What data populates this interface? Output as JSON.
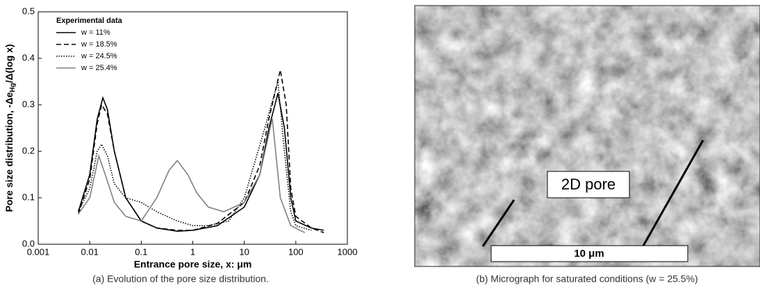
{
  "chart_data": {
    "type": "line",
    "xlabel": "Entrance pore size, x: μm",
    "ylabel": "Pore size distribution, -Δe",
    "ylabel_sub": "Hg",
    "ylabel_end": "/Δ(log x)",
    "legend_title": "Experimental data",
    "legend": "upper left",
    "xscale": "log",
    "xlim": [
      0.001,
      1000
    ],
    "xticks": [
      0.001,
      0.01,
      0.1,
      1,
      10,
      100,
      1000
    ],
    "ylim": [
      0,
      0.5
    ],
    "yticks": [
      {
        "value": 0,
        "label": "0.0"
      },
      0.1,
      0.2,
      0.3,
      0.4,
      0.5
    ],
    "series": [
      {
        "name": "w = 11%",
        "color": "#000000",
        "dash": "solid",
        "x": [
          0.006,
          0.01,
          0.014,
          0.018,
          0.022,
          0.03,
          0.05,
          0.1,
          0.2,
          0.5,
          1,
          3,
          10,
          20,
          30,
          45,
          60,
          80,
          100,
          200,
          350
        ],
        "values": [
          0.07,
          0.15,
          0.27,
          0.315,
          0.29,
          0.2,
          0.1,
          0.05,
          0.035,
          0.028,
          0.03,
          0.04,
          0.08,
          0.15,
          0.25,
          0.325,
          0.25,
          0.1,
          0.05,
          0.035,
          0.03
        ]
      },
      {
        "name": "w = 18.5%",
        "color": "#000000",
        "dash": "dashed",
        "x": [
          0.006,
          0.01,
          0.014,
          0.017,
          0.022,
          0.03,
          0.05,
          0.1,
          0.2,
          0.5,
          1,
          3,
          10,
          20,
          30,
          50,
          65,
          80,
          100,
          200,
          350
        ],
        "values": [
          0.065,
          0.14,
          0.26,
          0.3,
          0.28,
          0.2,
          0.1,
          0.05,
          0.035,
          0.03,
          0.03,
          0.045,
          0.09,
          0.17,
          0.27,
          0.375,
          0.3,
          0.12,
          0.06,
          0.035,
          0.025
        ]
      },
      {
        "name": "w = 24.5%",
        "color": "#000000",
        "dash": "dotted",
        "x": [
          0.006,
          0.01,
          0.014,
          0.017,
          0.022,
          0.03,
          0.05,
          0.1,
          0.2,
          0.5,
          1,
          2,
          5,
          10,
          25,
          45,
          60,
          80,
          100,
          200
        ],
        "values": [
          0.07,
          0.12,
          0.2,
          0.215,
          0.19,
          0.13,
          0.1,
          0.09,
          0.07,
          0.05,
          0.04,
          0.04,
          0.05,
          0.1,
          0.25,
          0.35,
          0.2,
          0.07,
          0.04,
          0.03
        ]
      },
      {
        "name": "w = 25.4%",
        "color": "#808080",
        "dash": "solid",
        "x": [
          0.006,
          0.01,
          0.015,
          0.02,
          0.03,
          0.05,
          0.1,
          0.2,
          0.35,
          0.5,
          0.8,
          1.2,
          2,
          4,
          10,
          20,
          35,
          50,
          80,
          150
        ],
        "values": [
          0.065,
          0.1,
          0.19,
          0.15,
          0.09,
          0.06,
          0.05,
          0.1,
          0.16,
          0.18,
          0.15,
          0.11,
          0.08,
          0.07,
          0.09,
          0.15,
          0.27,
          0.1,
          0.04,
          0.025
        ]
      }
    ]
  },
  "captions": [
    "(a) Evolution of the pore size distribution.",
    "(b) Micrograph for saturated conditions (w = 25.5%)"
  ],
  "micrograph": {
    "pore_label": "2D pore",
    "scale_bar": "10 μm"
  }
}
